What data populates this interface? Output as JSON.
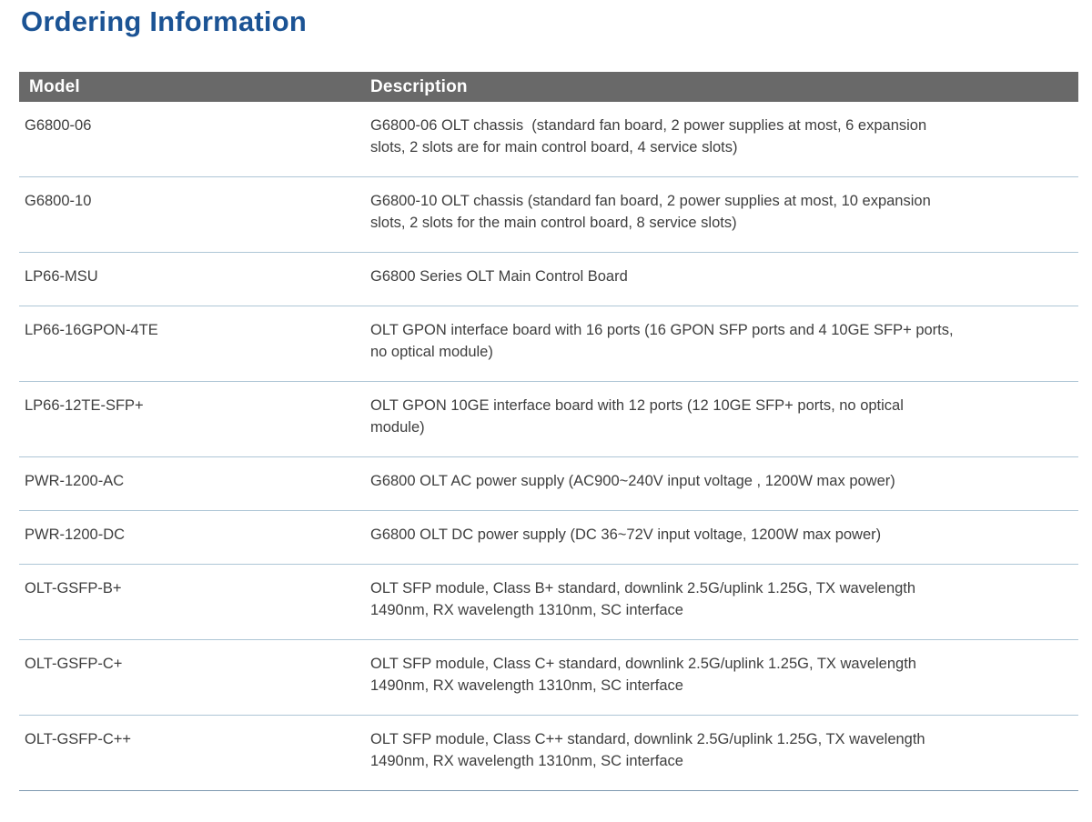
{
  "page": {
    "title": "Ordering Information"
  },
  "table": {
    "columns": [
      "Model",
      "Description"
    ],
    "rows": [
      {
        "model": "G6800-06",
        "description": "G6800-06 OLT chassis  (standard fan board, 2 power supplies at most, 6 expansion slots, 2 slots are for main control board, 4 service slots)"
      },
      {
        "model": "G6800-10",
        "description": "G6800-10 OLT chassis (standard fan board, 2 power supplies at most, 10 expansion slots, 2 slots for the main control board, 8 service slots)"
      },
      {
        "model": "LP66-MSU",
        "description": "G6800 Series OLT Main Control Board"
      },
      {
        "model": "LP66-16GPON-4TE",
        "description": "OLT GPON interface board with 16 ports (16 GPON SFP ports and 4 10GE SFP+ ports, no optical module)"
      },
      {
        "model": "LP66-12TE-SFP+",
        "description": "OLT GPON 10GE interface board with 12 ports (12 10GE SFP+ ports, no optical module)"
      },
      {
        "model": "PWR-1200-AC",
        "description": "G6800 OLT AC power supply (AC900~240V input voltage , 1200W max power)"
      },
      {
        "model": "PWR-1200-DC",
        "description": "G6800 OLT DC power supply (DC 36~72V input voltage, 1200W max power)"
      },
      {
        "model": "OLT-GSFP-B+",
        "description": "OLT SFP module, Class B+ standard, downlink 2.5G/uplink 1.25G, TX wavelength 1490nm, RX wavelength 1310nm, SC interface"
      },
      {
        "model": "OLT-GSFP-C+",
        "description": "OLT SFP module, Class C+ standard, downlink 2.5G/uplink 1.25G, TX wavelength 1490nm, RX wavelength 1310nm, SC interface"
      },
      {
        "model": "OLT-GSFP-C++",
        "description": "OLT SFP module, Class C++ standard, downlink 2.5G/uplink 1.25G, TX wavelength 1490nm, RX wavelength 1310nm, SC interface"
      }
    ]
  },
  "colors": {
    "title": "#1b5394",
    "header_bg": "#696969",
    "header_text": "#ffffff",
    "body_text": "#3e3e3e",
    "separator": "#aec6d6",
    "bottom_line": "#7e98b0"
  }
}
